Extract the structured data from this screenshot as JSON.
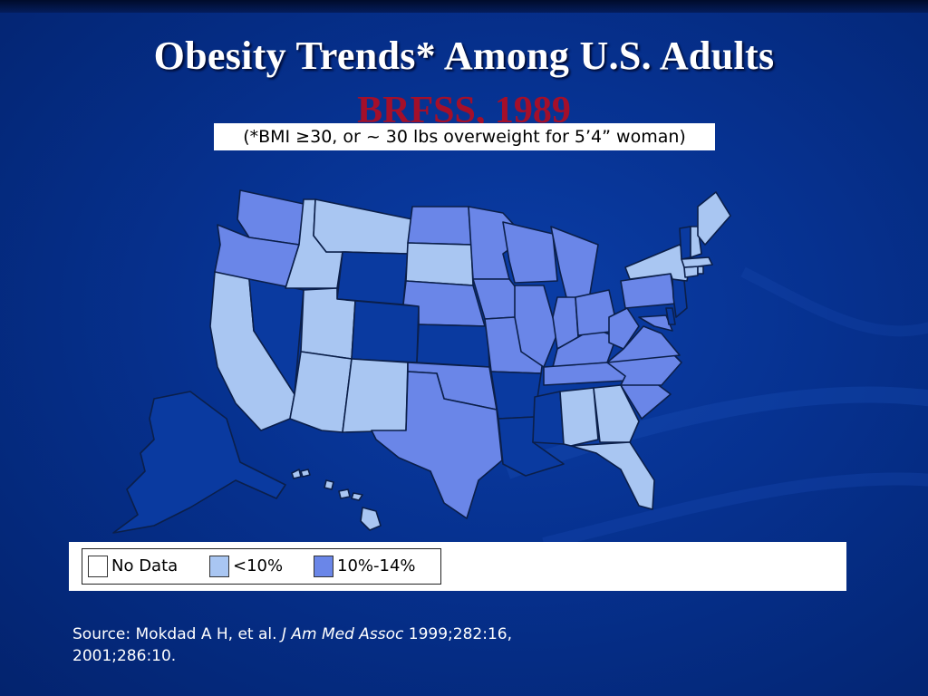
{
  "slide": {
    "title": "Obesity Trends* Among U.S. Adults",
    "subtitle": "BRFSS, 1989",
    "note": "(*BMI ≥30, or ~ 30 lbs overweight for 5’4” woman)"
  },
  "colors": {
    "no_data": "#ffffff",
    "lt10": "#a9c6f2",
    "p10_14": "#6a86e8",
    "dark": "#0a3aa0",
    "outline": "#0b1f4a"
  },
  "legend": {
    "items": [
      {
        "label": "No Data",
        "color": "#ffffff"
      },
      {
        "label": "<10%",
        "color": "#a9c6f2"
      },
      {
        "label": "10%-14%",
        "color": "#6a86e8"
      }
    ]
  },
  "source": {
    "prefix": "Source: Mokdad A H, et al.",
    "journal": "J Am Med Assoc",
    "suffix": "1999;282:16,",
    "line2": "2001;286:10."
  },
  "map_data": {
    "states": [
      {
        "id": "WA",
        "category": "10%-14%"
      },
      {
        "id": "OR",
        "category": "10%-14%"
      },
      {
        "id": "CA",
        "category": "<10%"
      },
      {
        "id": "NV",
        "category": "No Data"
      },
      {
        "id": "ID",
        "category": "<10%"
      },
      {
        "id": "MT",
        "category": "<10%"
      },
      {
        "id": "WY",
        "category": "No Data"
      },
      {
        "id": "UT",
        "category": "<10%"
      },
      {
        "id": "AZ",
        "category": "<10%"
      },
      {
        "id": "CO",
        "category": "No Data"
      },
      {
        "id": "NM",
        "category": "<10%"
      },
      {
        "id": "ND",
        "category": "10%-14%"
      },
      {
        "id": "SD",
        "category": "<10%"
      },
      {
        "id": "NE",
        "category": "10%-14%"
      },
      {
        "id": "KS",
        "category": "No Data"
      },
      {
        "id": "OK",
        "category": "10%-14%"
      },
      {
        "id": "TX",
        "category": "10%-14%"
      },
      {
        "id": "MN",
        "category": "10%-14%"
      },
      {
        "id": "IA",
        "category": "10%-14%"
      },
      {
        "id": "MO",
        "category": "10%-14%"
      },
      {
        "id": "AR",
        "category": "No Data"
      },
      {
        "id": "LA",
        "category": "No Data"
      },
      {
        "id": "WI",
        "category": "10%-14%"
      },
      {
        "id": "IL",
        "category": "10%-14%"
      },
      {
        "id": "MS",
        "category": "No Data"
      },
      {
        "id": "MI",
        "category": "10%-14%"
      },
      {
        "id": "IN",
        "category": "10%-14%"
      },
      {
        "id": "KY",
        "category": "10%-14%"
      },
      {
        "id": "TN",
        "category": "10%-14%"
      },
      {
        "id": "AL",
        "category": "<10%"
      },
      {
        "id": "OH",
        "category": "10%-14%"
      },
      {
        "id": "WV",
        "category": "10%-14%"
      },
      {
        "id": "GA",
        "category": "<10%"
      },
      {
        "id": "FL",
        "category": "<10%"
      },
      {
        "id": "SC",
        "category": "10%-14%"
      },
      {
        "id": "NC",
        "category": "10%-14%"
      },
      {
        "id": "VA",
        "category": "10%-14%"
      },
      {
        "id": "MD",
        "category": "10%-14%"
      },
      {
        "id": "DE",
        "category": "No Data"
      },
      {
        "id": "PA",
        "category": "10%-14%"
      },
      {
        "id": "NJ",
        "category": "No Data"
      },
      {
        "id": "NY",
        "category": "<10%"
      },
      {
        "id": "CT",
        "category": "<10%"
      },
      {
        "id": "RI",
        "category": "<10%"
      },
      {
        "id": "MA",
        "category": "<10%"
      },
      {
        "id": "VT",
        "category": "No Data"
      },
      {
        "id": "NH",
        "category": "<10%"
      },
      {
        "id": "ME",
        "category": "<10%"
      },
      {
        "id": "AK",
        "category": "No Data"
      },
      {
        "id": "HI",
        "category": "<10%"
      }
    ]
  }
}
